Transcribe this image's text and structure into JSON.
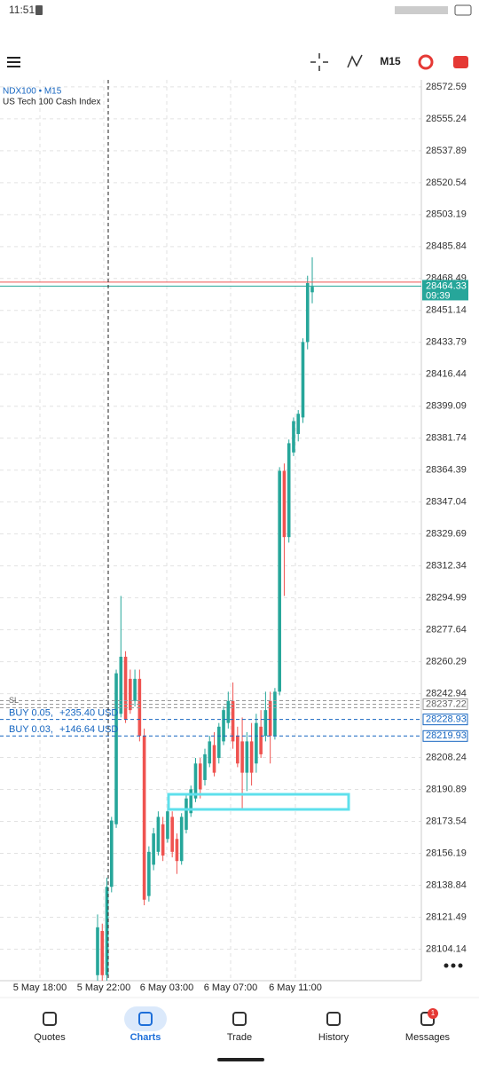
{
  "status_bar": {
    "time": "11:51"
  },
  "toolbar": {
    "timeframe": "M15"
  },
  "chart_data": {
    "type": "candlestick",
    "title": "NDX100 • M15",
    "subtitle": "US Tech 100 Cash Index",
    "open": [
      28090,
      28114,
      28090,
      28138,
      28172,
      28232,
      28263,
      28251,
      28239,
      28251,
      28220,
      28133,
      28150,
      28157,
      28172,
      28164,
      28176,
      28164,
      28152,
      28169,
      28178,
      28186,
      28205,
      28196,
      28205,
      28215,
      28208,
      28217,
      28227,
      28239,
      28220,
      28217,
      28200,
      28217,
      28205,
      28225,
      28220,
      28239,
      28220,
      28244,
      28364,
      28328,
      28374,
      28384,
      28393,
      28434,
      28461
    ],
    "high": [
      28123,
      28118,
      28143,
      28176,
      28256,
      28296,
      28266,
      28256,
      28256,
      28256,
      28224,
      28160,
      28170,
      28179,
      28176,
      28181,
      28179,
      28167,
      28178,
      28188,
      28193,
      28208,
      28208,
      28213,
      28220,
      28222,
      28227,
      28236,
      28244,
      28249,
      28225,
      28230,
      28222,
      28227,
      28232,
      28234,
      28244,
      28244,
      28246,
      28366,
      28368,
      28381,
      28393,
      28397,
      28436,
      28470,
      28480
    ],
    "low": [
      28087,
      28087,
      28087,
      28135,
      28170,
      28230,
      28227,
      28232,
      28236,
      28217,
      28128,
      28130,
      28147,
      28155,
      28152,
      28162,
      28154,
      28145,
      28150,
      28167,
      28176,
      28184,
      28186,
      28193,
      28203,
      28198,
      28205,
      28215,
      28224,
      28213,
      28203,
      28180,
      28190,
      28193,
      28200,
      28208,
      28217,
      28205,
      28218,
      28242,
      28296,
      28325,
      28372,
      28380,
      28390,
      28430,
      28455
    ],
    "close": [
      28116,
      28090,
      28138,
      28174,
      28254,
      28263,
      28229,
      28234,
      28251,
      28220,
      28131,
      28157,
      28167,
      28176,
      28155,
      28179,
      28157,
      28152,
      28176,
      28186,
      28191,
      28205,
      28191,
      28210,
      28217,
      28200,
      28225,
      28234,
      28239,
      28217,
      28205,
      28200,
      28217,
      28200,
      28227,
      28210,
      28234,
      28220,
      28244,
      28364,
      28328,
      28379,
      28391,
      28395,
      28434,
      28466,
      28464
    ],
    "up_color": "#26a69a",
    "down_color": "#ef5350",
    "ylim": [
      28087,
      28576.4
    ],
    "yticks": [
      28572.59,
      28555.24,
      28537.89,
      28520.54,
      28503.19,
      28485.84,
      28468.49,
      28451.14,
      28433.79,
      28416.44,
      28399.09,
      28381.74,
      28364.39,
      28347.04,
      28329.69,
      28312.34,
      28294.99,
      28277.64,
      28260.29,
      28242.94,
      28208.24,
      28190.89,
      28173.54,
      28156.19,
      28138.84,
      28121.49,
      28104.14
    ],
    "x_labels": [
      "5 May 18:00",
      "5 May 22:00",
      "6 May 03:00",
      "6 May 07:00",
      "6 May 11:00"
    ],
    "grid": true,
    "ask_line": 28466.5,
    "current_price": 28464.33,
    "countdown": "09:39",
    "stop_loss": {
      "label": "SL",
      "price": 28237.22
    },
    "orders": [
      {
        "side": "BUY 0.05,",
        "profit": "+235.40 USD",
        "price": 28228.93
      },
      {
        "side": "BUY 0.03,",
        "profit": "+146.64 USD",
        "price": 28219.93
      }
    ]
  },
  "nav": {
    "items": [
      "Quotes",
      "Charts",
      "Trade",
      "History",
      "Messages"
    ],
    "badge": 1
  }
}
